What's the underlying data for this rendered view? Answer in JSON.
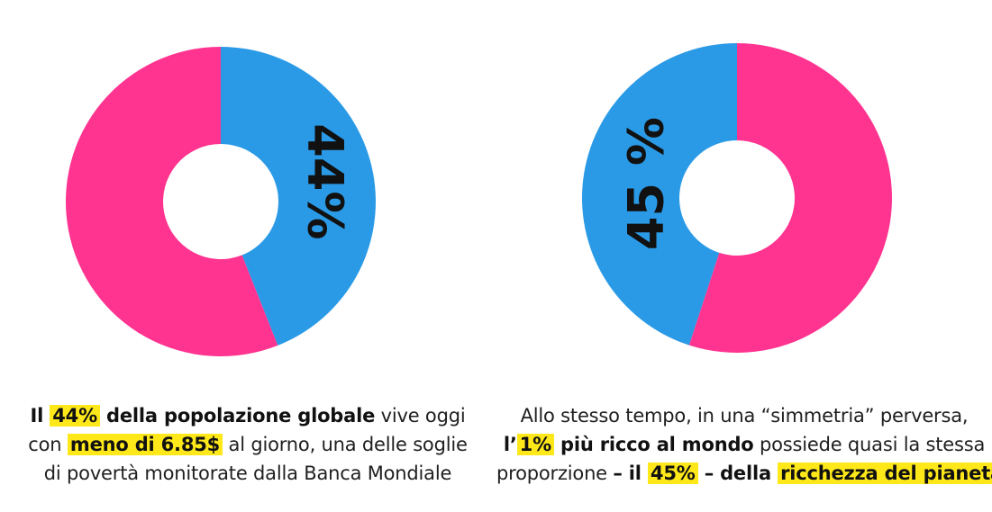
{
  "colors": {
    "pink": "#ff3390",
    "blue": "#2b9ae6",
    "highlight": "#ffe81a",
    "label": "#111111"
  },
  "chart_data": [
    {
      "type": "pie",
      "donut": true,
      "slices": [
        {
          "label": "44%",
          "value": 44,
          "color": "#2b9ae6"
        },
        {
          "label": "",
          "value": 56,
          "color": "#ff3390"
        }
      ],
      "caption": {
        "l1": [
          "Il ",
          "44%",
          " della popolazione globale",
          " vive oggi"
        ],
        "l2": [
          "con ",
          "meno di 6.85$",
          " al giorno, una delle soglie"
        ],
        "l3": [
          "di povertà monitorate dalla Banca Mondiale"
        ]
      }
    },
    {
      "type": "pie",
      "donut": true,
      "slices": [
        {
          "label": "",
          "value": 55,
          "color": "#ff3390"
        },
        {
          "label": "45 %",
          "value": 45,
          "color": "#2b9ae6"
        }
      ],
      "caption": {
        "l1": [
          "Allo stesso tempo, in una “simmetria” perversa,"
        ],
        "l2": [
          "l’",
          "1%",
          " più ricco al mondo",
          " possiede quasi la stessa"
        ],
        "l3": [
          "proporzione ",
          "– il ",
          "45%",
          " – della ",
          "ricchezza del pianeta"
        ]
      }
    }
  ]
}
